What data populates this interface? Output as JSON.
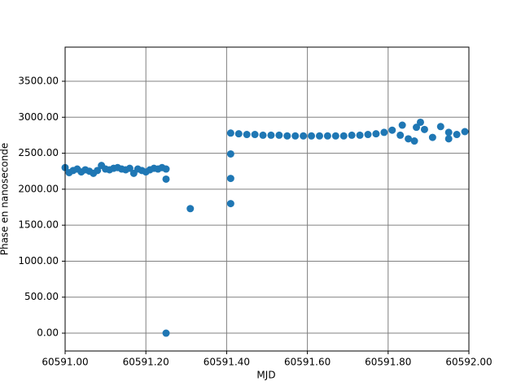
{
  "chart_data": {
    "type": "scatter",
    "color": "#1f77b4",
    "grid": true,
    "xlabel": "MJD",
    "ylabel": "Phase en nanoseconde",
    "xlim": [
      60591.0,
      60592.0
    ],
    "xticks": [
      {
        "value": 60591.0,
        "label": "60591.00"
      },
      {
        "value": 60591.2,
        "label": "60591.20"
      },
      {
        "value": 60591.4,
        "label": "60591.40"
      },
      {
        "value": 60591.6,
        "label": "60591.60"
      },
      {
        "value": 60591.8,
        "label": "60591.80"
      },
      {
        "value": 60592.0,
        "label": "60592.00"
      }
    ],
    "ylim": [
      -248,
      3974
    ],
    "yticks": [
      {
        "value": 0,
        "label": "0.00"
      },
      {
        "value": 500,
        "label": "500.00"
      },
      {
        "value": 1000,
        "label": "1000.00"
      },
      {
        "value": 1500,
        "label": "1500.00"
      },
      {
        "value": 2000,
        "label": "2000.00"
      },
      {
        "value": 2500,
        "label": "2500.00"
      },
      {
        "value": 3000,
        "label": "3000.00"
      },
      {
        "value": 3500,
        "label": "3500.00"
      }
    ],
    "x": [
      60591.0,
      60591.01,
      60591.02,
      60591.03,
      60591.04,
      60591.05,
      60591.06,
      60591.07,
      60591.08,
      60591.09,
      60591.1,
      60591.11,
      60591.12,
      60591.13,
      60591.14,
      60591.15,
      60591.16,
      60591.17,
      60591.18,
      60591.19,
      60591.2,
      60591.21,
      60591.22,
      60591.23,
      60591.24,
      60591.25,
      60591.25,
      60591.25,
      60591.31,
      60591.41,
      60591.41,
      60591.41,
      60591.41,
      60591.43,
      60591.45,
      60591.47,
      60591.49,
      60591.51,
      60591.53,
      60591.55,
      60591.57,
      60591.59,
      60591.61,
      60591.63,
      60591.65,
      60591.67,
      60591.69,
      60591.71,
      60591.73,
      60591.75,
      60591.77,
      60591.79,
      60591.81,
      60591.83,
      60591.85,
      60591.87,
      60591.89,
      60591.91,
      60591.93,
      60591.95,
      60591.97,
      60591.99,
      60591.88,
      60591.865,
      60591.95,
      60591.835
    ],
    "values": [
      2300,
      2230,
      2260,
      2280,
      2240,
      2270,
      2250,
      2220,
      2260,
      2330,
      2280,
      2270,
      2290,
      2300,
      2280,
      2270,
      2290,
      2220,
      2280,
      2260,
      2240,
      2270,
      2290,
      2280,
      2300,
      2280,
      2140,
      0,
      1730,
      1800,
      2150,
      2490,
      2780,
      2770,
      2760,
      2760,
      2750,
      2750,
      2750,
      2740,
      2740,
      2740,
      2740,
      2740,
      2740,
      2740,
      2740,
      2750,
      2750,
      2760,
      2770,
      2790,
      2820,
      2750,
      2700,
      2860,
      2830,
      2720,
      2870,
      2790,
      2760,
      2800,
      2930,
      2670,
      2700,
      2890
    ]
  }
}
